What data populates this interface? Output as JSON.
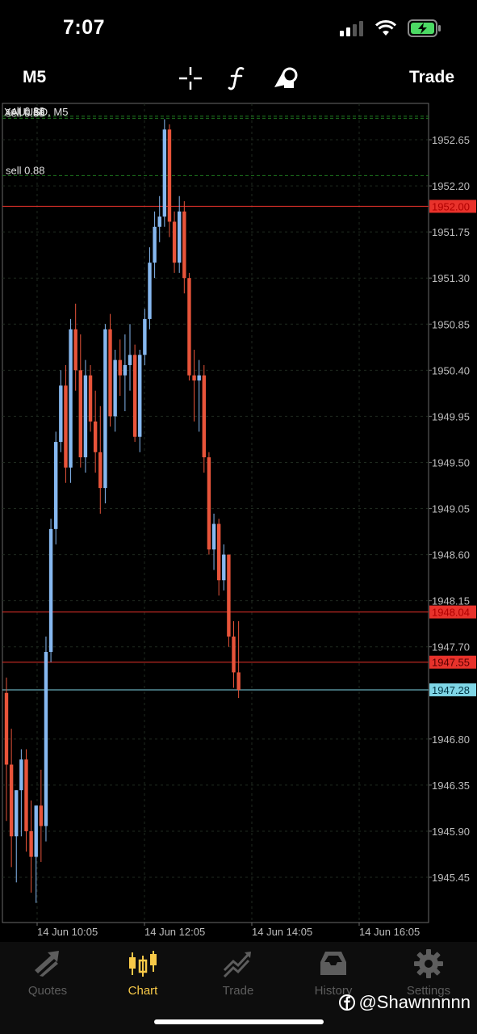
{
  "status": {
    "time": "7:07"
  },
  "toolbar": {
    "timeframe": "M5",
    "trade_label": "Trade"
  },
  "chart": {
    "symbol_label": "XAUUSD, M5",
    "orders": [
      {
        "label": "sell 0.88",
        "price": 1952.88
      },
      {
        "label": "sell 0.88",
        "price": 1952.86
      },
      {
        "label": "sell 0.88",
        "price": 1952.3
      }
    ],
    "price_labels": [
      "1952.65",
      "1952.20",
      "1951.75",
      "1951.30",
      "1950.85",
      "1950.40",
      "1949.95",
      "1949.50",
      "1949.05",
      "1948.60",
      "1948.15",
      "1947.70",
      "1946.80",
      "1946.35",
      "1945.90",
      "1945.45"
    ],
    "price_ticks": [
      1952.65,
      1952.2,
      1951.75,
      1951.3,
      1950.85,
      1950.4,
      1949.95,
      1949.5,
      1949.05,
      1948.6,
      1948.15,
      1947.7,
      1946.8,
      1946.35,
      1945.9,
      1945.45
    ],
    "time_labels": [
      "14 Jun 10:05",
      "14 Jun 12:05",
      "14 Jun 14:05",
      "14 Jun 16:05"
    ],
    "levels": [
      {
        "price": 1952.0,
        "label": "1952.00",
        "color": "#e8322b",
        "text_color": "#b00000"
      },
      {
        "price": 1948.04,
        "label": "1948.04",
        "color": "#e8322b",
        "text_color": "#b00000"
      },
      {
        "price": 1947.55,
        "label": "1947.55",
        "color": "#e8322b",
        "text_color": "#5a0000"
      },
      {
        "price": 1947.28,
        "label": "1947.28",
        "color": "#7fd6e6",
        "text_color": "#003544"
      }
    ],
    "candles": [
      [
        1947.25,
        1947.4,
        1946.0,
        1946.55
      ],
      [
        1946.55,
        1946.9,
        1945.55,
        1945.85
      ],
      [
        1945.85,
        1946.3,
        1945.4,
        1946.3
      ],
      [
        1946.3,
        1946.7,
        1945.85,
        1946.6
      ],
      [
        1946.6,
        1946.7,
        1945.7,
        1945.9
      ],
      [
        1945.9,
        1946.2,
        1945.3,
        1945.65
      ],
      [
        1945.65,
        1946.15,
        1945.2,
        1946.15
      ],
      [
        1946.15,
        1946.5,
        1945.6,
        1945.95
      ],
      [
        1945.95,
        1947.8,
        1945.8,
        1947.65
      ],
      [
        1947.65,
        1948.95,
        1947.55,
        1948.85
      ],
      [
        1948.85,
        1949.8,
        1948.7,
        1949.7
      ],
      [
        1949.7,
        1950.4,
        1949.6,
        1950.25
      ],
      [
        1950.25,
        1950.45,
        1949.3,
        1949.45
      ],
      [
        1949.45,
        1950.9,
        1949.3,
        1950.8
      ],
      [
        1950.8,
        1951.05,
        1950.2,
        1950.4
      ],
      [
        1950.4,
        1950.75,
        1949.45,
        1949.55
      ],
      [
        1949.55,
        1950.5,
        1949.4,
        1950.35
      ],
      [
        1950.35,
        1950.45,
        1949.8,
        1949.9
      ],
      [
        1949.9,
        1950.2,
        1949.4,
        1949.6
      ],
      [
        1949.6,
        1950.05,
        1949.0,
        1949.25
      ],
      [
        1949.25,
        1950.85,
        1949.1,
        1950.8
      ],
      [
        1950.8,
        1950.95,
        1949.85,
        1949.95
      ],
      [
        1949.95,
        1950.6,
        1949.8,
        1950.5
      ],
      [
        1950.5,
        1950.7,
        1950.15,
        1950.35
      ],
      [
        1950.35,
        1950.75,
        1950.0,
        1950.45
      ],
      [
        1950.45,
        1950.85,
        1950.2,
        1950.55
      ],
      [
        1950.55,
        1950.65,
        1949.7,
        1949.75
      ],
      [
        1949.75,
        1950.6,
        1949.6,
        1950.55
      ],
      [
        1950.55,
        1951.0,
        1950.45,
        1950.9
      ],
      [
        1950.9,
        1951.6,
        1950.8,
        1951.45
      ],
      [
        1951.45,
        1951.95,
        1951.3,
        1951.8
      ],
      [
        1951.8,
        1952.1,
        1951.65,
        1951.9
      ],
      [
        1951.9,
        1952.85,
        1951.8,
        1952.75
      ],
      [
        1952.75,
        1952.8,
        1951.7,
        1951.85
      ],
      [
        1951.85,
        1951.95,
        1951.35,
        1951.45
      ],
      [
        1951.45,
        1952.1,
        1951.35,
        1951.95
      ],
      [
        1951.95,
        1952.05,
        1951.15,
        1951.3
      ],
      [
        1951.3,
        1951.35,
        1950.3,
        1950.35
      ],
      [
        1950.35,
        1950.6,
        1949.9,
        1950.3
      ],
      [
        1950.3,
        1950.5,
        1949.8,
        1950.35
      ],
      [
        1950.35,
        1950.45,
        1949.4,
        1949.55
      ],
      [
        1949.55,
        1949.6,
        1948.6,
        1948.65
      ],
      [
        1948.65,
        1949.0,
        1948.45,
        1948.9
      ],
      [
        1948.9,
        1948.95,
        1948.2,
        1948.35
      ],
      [
        1948.35,
        1948.7,
        1948.25,
        1948.6
      ],
      [
        1948.6,
        1948.6,
        1947.7,
        1947.8
      ],
      [
        1947.8,
        1947.95,
        1947.3,
        1947.45
      ],
      [
        1947.45,
        1947.95,
        1947.2,
        1947.28
      ]
    ]
  },
  "nav": {
    "items": [
      {
        "label": "Quotes",
        "icon": "quotes-icon"
      },
      {
        "label": "Chart",
        "icon": "chart-candles-icon"
      },
      {
        "label": "Trade",
        "icon": "trade-icon"
      },
      {
        "label": "History",
        "icon": "history-icon"
      },
      {
        "label": "Settings",
        "icon": "settings-icon"
      }
    ],
    "active_color": "#f7c948",
    "inactive_color": "#5d5d5d"
  },
  "watermark": {
    "text": "@Shawnnnnn"
  }
}
